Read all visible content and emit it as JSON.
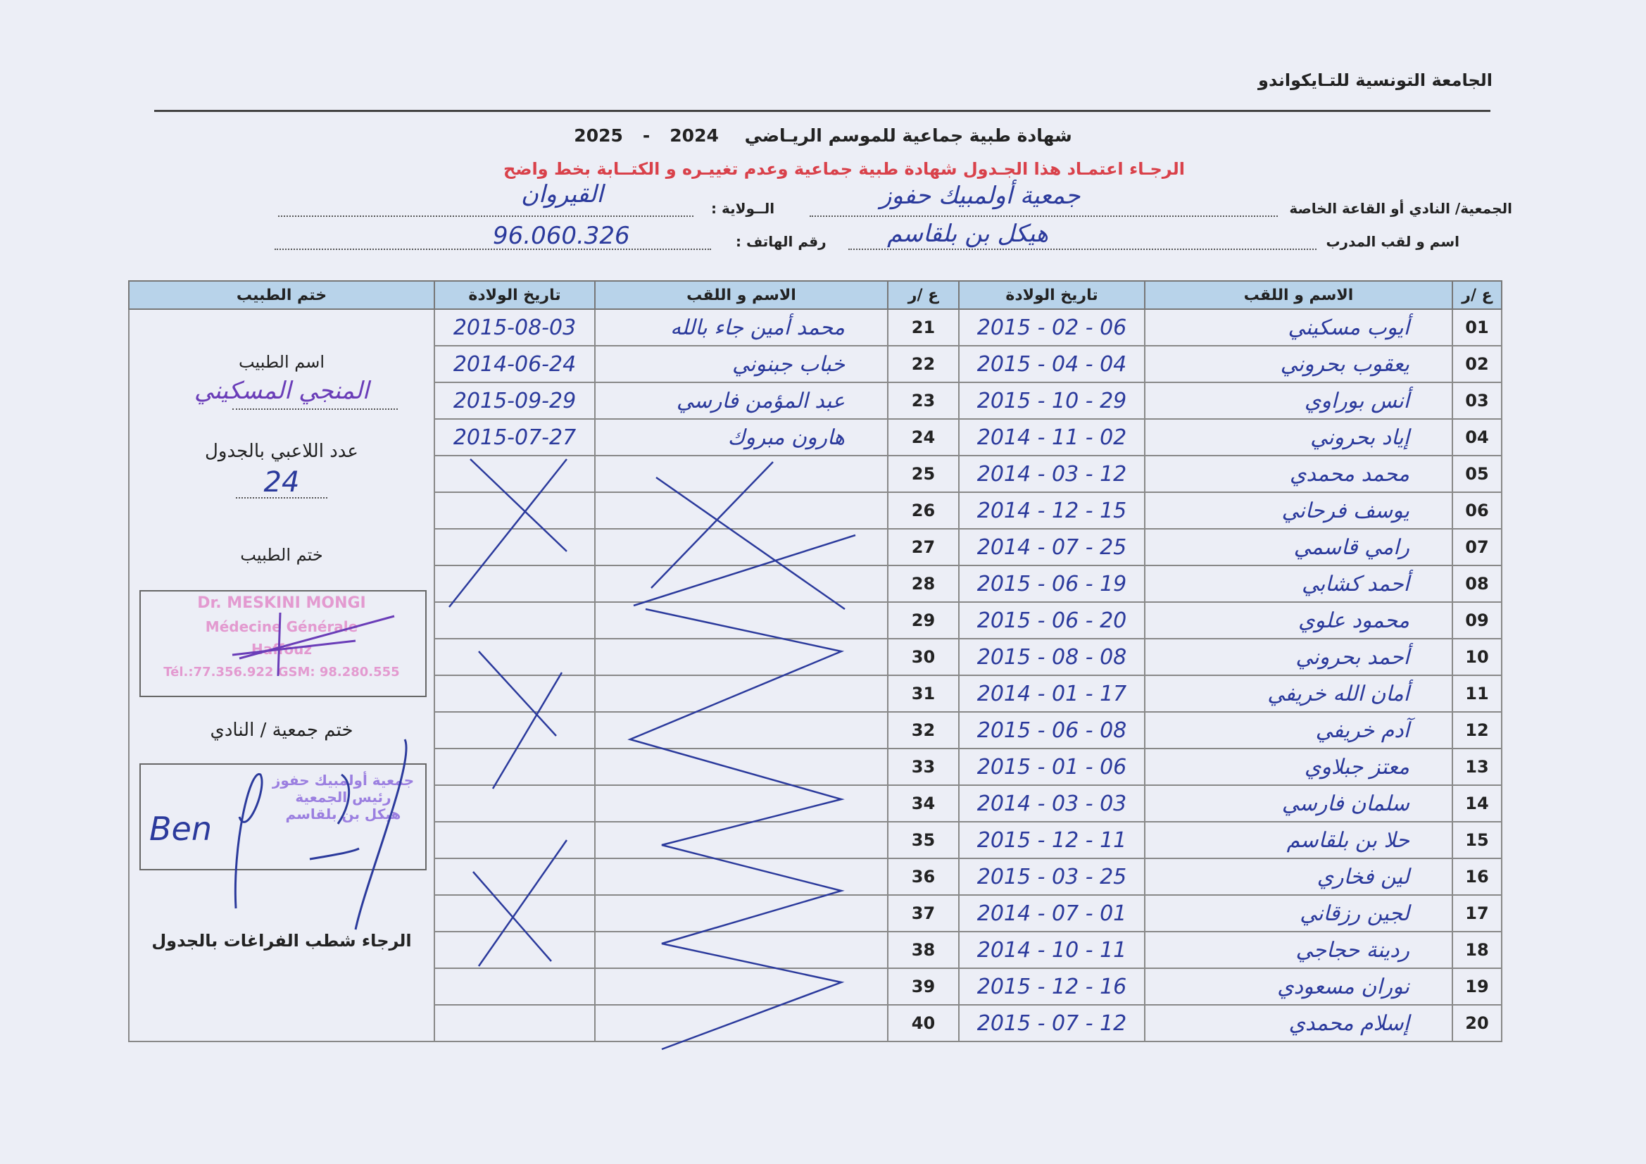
{
  "header": {
    "federation": "الجامعة التونسية للتـايكواندو",
    "title": "شهادة طبية جماعية  للموسم الريـاضي",
    "season_start": "2024",
    "season_sep": "-",
    "season_end": "2025",
    "notice": "الرجـاء اعتمـاد هذا الجـدول  شهادة طبية جماعية وعدم تغييـره و الكتــابة بخط واضح"
  },
  "form": {
    "club_label": "الجمعية/ النادي أو القاعة الخاصة",
    "club_value": "جمعية أولمبيك حفوز",
    "state_label": "الــولاية :",
    "state_value": "القيروان",
    "coach_label": "اسم و لقب المدرب",
    "coach_value": "هيكل بن بلقاسم",
    "phone_label": "رقم الهاتف :",
    "phone_value": "96.060.326"
  },
  "table": {
    "headers": {
      "no": "ع /ر",
      "name": "الاسم و اللقب",
      "birth": "تاريخ الولادة",
      "doctor_stamp": "ختم الطبيب"
    },
    "rows": [
      {
        "no": "01",
        "name": "أيوب مسكيني",
        "birth": "2015 - 02 - 06"
      },
      {
        "no": "02",
        "name": "يعقوب بحروني",
        "birth": "2015 - 04 - 04"
      },
      {
        "no": "03",
        "name": "أنس بوراوي",
        "birth": "2015 - 10 - 29"
      },
      {
        "no": "04",
        "name": "إياد بحروني",
        "birth": "2014 - 11 - 02"
      },
      {
        "no": "05",
        "name": "محمد محمدي",
        "birth": "2014 - 03 - 12"
      },
      {
        "no": "06",
        "name": "يوسف فرحاني",
        "birth": "2014 - 12 - 15"
      },
      {
        "no": "07",
        "name": "رامي قاسمي",
        "birth": "2014 - 07 - 25"
      },
      {
        "no": "08",
        "name": "أحمد كشابي",
        "birth": "2015 - 06 - 19"
      },
      {
        "no": "09",
        "name": "محمود علوي",
        "birth": "2015 - 06 - 20"
      },
      {
        "no": "10",
        "name": "أحمد بحروني",
        "birth": "2015 - 08 - 08"
      },
      {
        "no": "11",
        "name": "أمان الله خريفي",
        "birth": "2014 - 01 - 17"
      },
      {
        "no": "12",
        "name": "آدم خريفي",
        "birth": "2015 - 06 - 08"
      },
      {
        "no": "13",
        "name": "معتز جبلاوي",
        "birth": "2015 - 01 - 06"
      },
      {
        "no": "14",
        "name": "سلمان فارسي",
        "birth": "2014 - 03 - 03"
      },
      {
        "no": "15",
        "name": "حلا بن بلقاسم",
        "birth": "2015 - 12 - 11"
      },
      {
        "no": "16",
        "name": "لين فخاري",
        "birth": "2015 - 03 - 25"
      },
      {
        "no": "17",
        "name": "لجين رزقاني",
        "birth": "2014 - 07 - 01"
      },
      {
        "no": "18",
        "name": "ردينة حجاجي",
        "birth": "2014 - 10 - 11"
      },
      {
        "no": "19",
        "name": "نوران مسعودي",
        "birth": "2015 - 12 - 16"
      },
      {
        "no": "20",
        "name": "إسلام محمدي",
        "birth": "2015 - 07 - 12"
      }
    ],
    "rows2": [
      {
        "no": "21",
        "name": "محمد أمين جاء بالله",
        "birth": "2015-08-03"
      },
      {
        "no": "22",
        "name": "خباب جبنوني",
        "birth": "2014-06-24"
      },
      {
        "no": "23",
        "name": "عبد المؤمن فارسي",
        "birth": "2015-09-29"
      },
      {
        "no": "24",
        "name": "هارون مبروك",
        "birth": "2015-07-27"
      },
      {
        "no": "25",
        "name": "",
        "birth": ""
      },
      {
        "no": "26",
        "name": "",
        "birth": ""
      },
      {
        "no": "27",
        "name": "",
        "birth": ""
      },
      {
        "no": "28",
        "name": "",
        "birth": ""
      },
      {
        "no": "29",
        "name": "",
        "birth": ""
      },
      {
        "no": "30",
        "name": "",
        "birth": ""
      },
      {
        "no": "31",
        "name": "",
        "birth": ""
      },
      {
        "no": "32",
        "name": "",
        "birth": ""
      },
      {
        "no": "33",
        "name": "",
        "birth": ""
      },
      {
        "no": "34",
        "name": "",
        "birth": ""
      },
      {
        "no": "35",
        "name": "",
        "birth": ""
      },
      {
        "no": "36",
        "name": "",
        "birth": ""
      },
      {
        "no": "37",
        "name": "",
        "birth": ""
      },
      {
        "no": "38",
        "name": "",
        "birth": ""
      },
      {
        "no": "39",
        "name": "",
        "birth": ""
      },
      {
        "no": "40",
        "name": "",
        "birth": ""
      }
    ]
  },
  "doctor_panel": {
    "doctor_name_label": "اسم الطبيب",
    "doctor_name_value": "المنجي المسكيني",
    "player_count_label": "عدد اللاعبي بالجدول",
    "player_count_value": "24",
    "doctor_stamp_label": "ختم الطبيب",
    "doctor_stamp_lines": [
      "Dr. MESKINI MONGI",
      "Médecine Générale",
      "Haffouz",
      "Tél.:77.356.922  GSM: 98.280.555"
    ],
    "club_stamp_label": "ختم جمعية / النادي",
    "club_stamp_lines": [
      "جمعية أولمبيك حفوز",
      "رئيس الجمعية",
      "هيكل بن بلقاسم"
    ],
    "club_signature": "Ben",
    "footer_note": "الرجاء شطب  الفراغات بالجدول"
  },
  "colors": {
    "ink": "#2b3a9c",
    "notice_red": "#d9414a",
    "header_fill": "#b8d3ea",
    "doctor_stamp": "#e39ad0",
    "club_stamp": "#9b7fe0"
  }
}
